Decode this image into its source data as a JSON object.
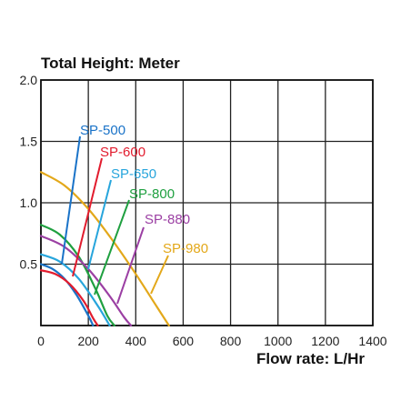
{
  "chart_data": {
    "type": "line",
    "title": "Total Height:  Meter",
    "xlabel": "Flow rate:  L/Hr",
    "ylabel": "",
    "xlim": [
      0,
      1400
    ],
    "ylim": [
      0,
      2.0
    ],
    "x_ticks": [
      "0",
      "200",
      "400",
      "600",
      "800",
      "1000",
      "1200",
      "1400"
    ],
    "y_ticks": [
      "0.5",
      "1.0",
      "1.5",
      "2.0"
    ],
    "grid": true,
    "series": [
      {
        "name": "SP-500",
        "color": "#1a73c8",
        "x": [
          0,
          50,
          100,
          150,
          200,
          220
        ],
        "y": [
          0.5,
          0.46,
          0.38,
          0.25,
          0.08,
          0
        ]
      },
      {
        "name": "SP-600",
        "color": "#e21c2e",
        "x": [
          0,
          60,
          120,
          180,
          220,
          240
        ],
        "y": [
          0.45,
          0.42,
          0.34,
          0.2,
          0.06,
          0
        ]
      },
      {
        "name": "SP-650",
        "color": "#27a5dc",
        "x": [
          0,
          80,
          160,
          240,
          290
        ],
        "y": [
          0.58,
          0.52,
          0.38,
          0.16,
          0
        ]
      },
      {
        "name": "SP-800",
        "color": "#1fa040",
        "x": [
          0,
          80,
          160,
          230,
          280,
          310
        ],
        "y": [
          0.82,
          0.74,
          0.56,
          0.3,
          0.08,
          0
        ]
      },
      {
        "name": "SP-880",
        "color": "#9b3fa3",
        "x": [
          0,
          100,
          200,
          290,
          350,
          380
        ],
        "y": [
          0.73,
          0.64,
          0.46,
          0.24,
          0.07,
          0
        ]
      },
      {
        "name": "SP-980",
        "color": "#e3a81a",
        "x": [
          0,
          100,
          200,
          300,
          400,
          480,
          540
        ],
        "y": [
          1.25,
          1.14,
          0.95,
          0.7,
          0.42,
          0.18,
          0
        ]
      }
    ]
  }
}
